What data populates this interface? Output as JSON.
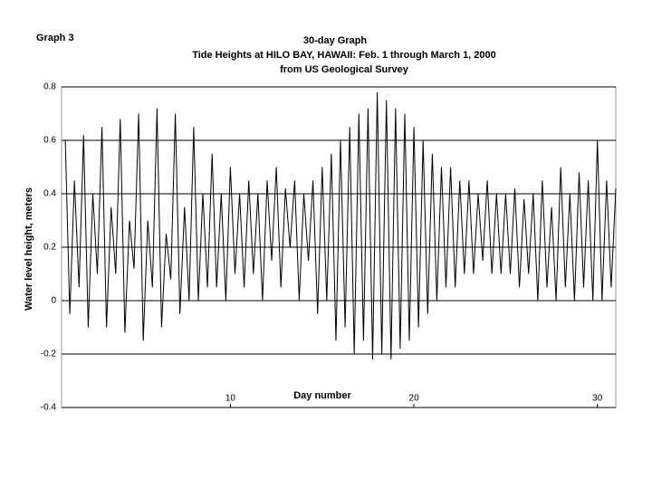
{
  "chart_data": {
    "type": "line",
    "label": "Graph 3",
    "title": "30-day Graph",
    "subtitle": "Tide Heights at HILO BAY, HAWAII: Feb. 1 through March 1, 2000",
    "source": "from US Geological Survey",
    "x_label": "Day number",
    "y_label": "Water level height, meters",
    "xlim": [
      0.8,
      31
    ],
    "xticks": [
      10,
      20,
      30
    ],
    "ylim": [
      -0.4,
      0.8
    ],
    "yticks": [
      0.8,
      0.6,
      0.4,
      0.2,
      0,
      -0.2,
      -0.4
    ],
    "grid": true,
    "x": [
      1,
      1.25,
      1.5,
      1.75,
      2,
      2.25,
      2.5,
      2.75,
      3,
      3.25,
      3.5,
      3.75,
      4,
      4.25,
      4.5,
      4.75,
      5,
      5.25,
      5.5,
      5.75,
      6,
      6.25,
      6.5,
      6.75,
      7,
      7.25,
      7.5,
      7.75,
      8,
      8.25,
      8.5,
      8.75,
      9,
      9.25,
      9.5,
      9.75,
      10,
      10.25,
      10.5,
      10.75,
      11,
      11.25,
      11.5,
      11.75,
      12,
      12.25,
      12.5,
      12.75,
      13,
      13.25,
      13.5,
      13.75,
      14,
      14.25,
      14.5,
      14.75,
      15,
      15.25,
      15.5,
      15.75,
      16,
      16.25,
      16.5,
      16.75,
      17,
      17.25,
      17.5,
      17.75,
      18,
      18.25,
      18.5,
      18.75,
      19,
      19.25,
      19.5,
      19.75,
      20,
      20.25,
      20.5,
      20.75,
      21,
      21.25,
      21.5,
      21.75,
      22,
      22.25,
      22.5,
      22.75,
      23,
      23.25,
      23.5,
      23.75,
      24,
      24.25,
      24.5,
      24.75,
      25,
      25.25,
      25.5,
      25.75,
      26,
      26.25,
      26.5,
      26.75,
      27,
      27.25,
      27.5,
      27.75,
      28,
      28.25,
      28.5,
      28.75,
      29,
      29.25,
      29.5,
      29.75,
      30,
      30.25,
      30.5,
      30.75,
      31
    ],
    "series": [
      {
        "name": "Water level",
        "color": "#000000",
        "values": [
          0.6,
          -0.05,
          0.45,
          0.05,
          0.62,
          -0.1,
          0.4,
          0.1,
          0.65,
          -0.1,
          0.35,
          0.1,
          0.68,
          -0.12,
          0.3,
          0.12,
          0.7,
          -0.15,
          0.3,
          0.05,
          0.72,
          -0.1,
          0.25,
          0.08,
          0.7,
          -0.05,
          0.35,
          0.0,
          0.65,
          0.0,
          0.4,
          0.05,
          0.55,
          0.05,
          0.4,
          0.0,
          0.5,
          0.1,
          0.4,
          0.05,
          0.45,
          0.1,
          0.4,
          0.0,
          0.45,
          0.15,
          0.5,
          0.05,
          0.42,
          0.2,
          0.45,
          0.0,
          0.4,
          0.15,
          0.45,
          -0.05,
          0.5,
          0.0,
          0.55,
          -0.15,
          0.6,
          -0.1,
          0.65,
          -0.2,
          0.7,
          -0.15,
          0.72,
          -0.22,
          0.78,
          -0.2,
          0.75,
          -0.22,
          0.72,
          -0.18,
          0.7,
          -0.15,
          0.65,
          -0.1,
          0.6,
          -0.05,
          0.55,
          0.0,
          0.5,
          0.05,
          0.5,
          0.05,
          0.45,
          0.1,
          0.45,
          0.1,
          0.4,
          0.15,
          0.45,
          0.1,
          0.4,
          0.1,
          0.4,
          0.1,
          0.42,
          0.05,
          0.38,
          0.1,
          0.4,
          0.0,
          0.45,
          0.05,
          0.35,
          0.0,
          0.5,
          0.05,
          0.4,
          0.0,
          0.48,
          0.05,
          0.45,
          0.0,
          0.6,
          0.0,
          0.45,
          0.05,
          0.42
        ]
      }
    ]
  }
}
